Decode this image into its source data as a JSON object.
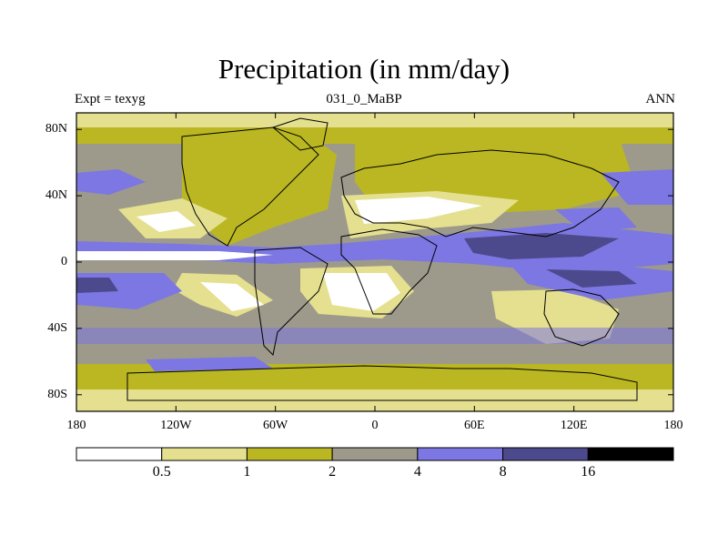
{
  "title": "Precipitation (in mm/day)",
  "subtitle_left": "Expt = texyg",
  "subtitle_center": "031_0_MaBP",
  "subtitle_right": "ANN",
  "map": {
    "projection": "cylindrical equidistant",
    "lon_range": [
      -180,
      180
    ],
    "lat_range": [
      -90,
      90
    ],
    "lat_ticks": [
      {
        "label": "80N",
        "value": 80
      },
      {
        "label": "40N",
        "value": 40
      },
      {
        "label": "0",
        "value": 0
      },
      {
        "label": "40S",
        "value": -40
      },
      {
        "label": "80S",
        "value": -80
      }
    ],
    "lon_ticks": [
      {
        "label": "180",
        "value": -180
      },
      {
        "label": "120W",
        "value": -120
      },
      {
        "label": "60W",
        "value": -60
      },
      {
        "label": "0",
        "value": 0
      },
      {
        "label": "60E",
        "value": 60
      },
      {
        "label": "120E",
        "value": 120
      },
      {
        "label": "180",
        "value": 180
      }
    ]
  },
  "colorbar": {
    "colors": [
      "#ffffff",
      "#e4e08f",
      "#bab722",
      "#9d9a8b",
      "#7c77e2",
      "#4c4a8c",
      "#000000"
    ],
    "labels": [
      "0.5",
      "1",
      "2",
      "4",
      "8",
      "16"
    ]
  }
}
